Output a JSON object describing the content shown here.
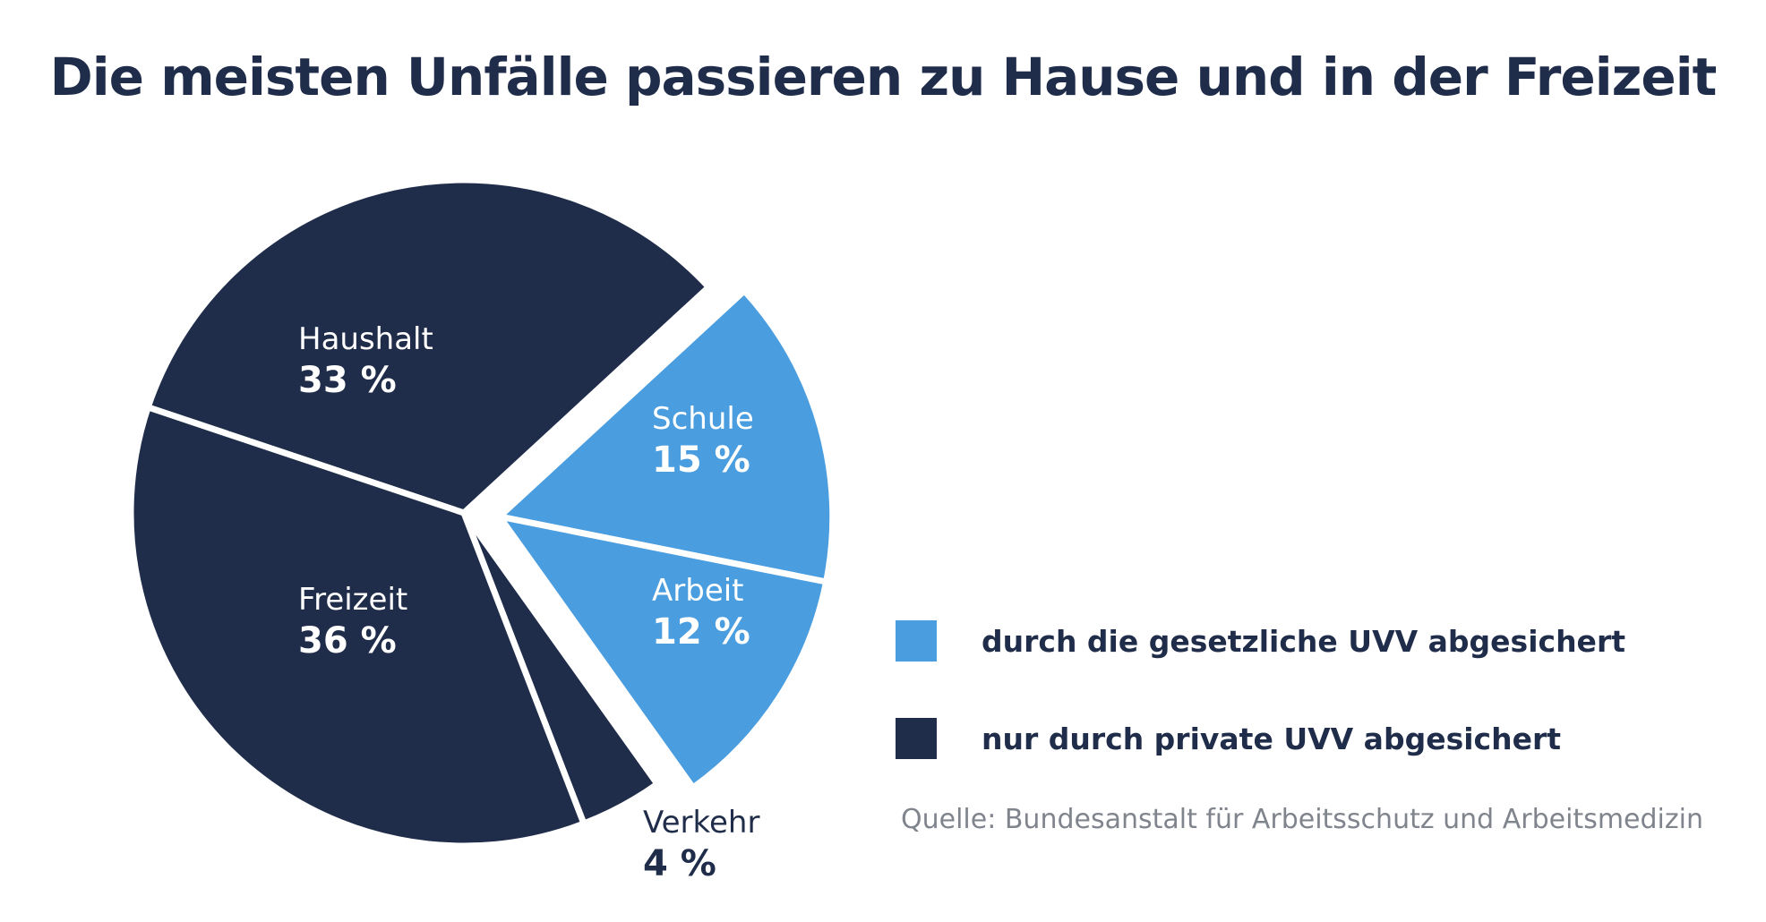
{
  "title": "Die meisten Unfälle passieren zu Hause und in der Freizeit",
  "colors": {
    "public": "#4a9ddf",
    "private": "#202d4a",
    "separator": "#ffffff",
    "title": "#202d4a",
    "source": "#80858d"
  },
  "chart_data": {
    "type": "pie",
    "title": "Die meisten Unfälle passieren zu Hause und in der Freizeit",
    "unit": "%",
    "slices": [
      {
        "label": "Haushalt",
        "value_label": "33 %",
        "value": 33,
        "group": "private"
      },
      {
        "label": "Schule",
        "value_label": "15 %",
        "value": 15,
        "group": "public"
      },
      {
        "label": "Arbeit",
        "value_label": "12 %",
        "value": 12,
        "group": "public"
      },
      {
        "label": "Verkehr",
        "value_label": "4 %",
        "value": 4,
        "group": "private"
      },
      {
        "label": "Freizeit",
        "value_label": "36 %",
        "value": 36,
        "group": "private"
      }
    ],
    "exploded_group": "public"
  },
  "legend": [
    {
      "label": "durch die gesetzliche UVV abgesichert",
      "group": "public",
      "color": "#4a9ddf"
    },
    {
      "label": "nur durch private UVV abgesichert",
      "group": "private",
      "color": "#202d4a"
    }
  ],
  "source": "Quelle: Bundesanstalt für Arbeitsschutz und Arbeitsmedizin"
}
